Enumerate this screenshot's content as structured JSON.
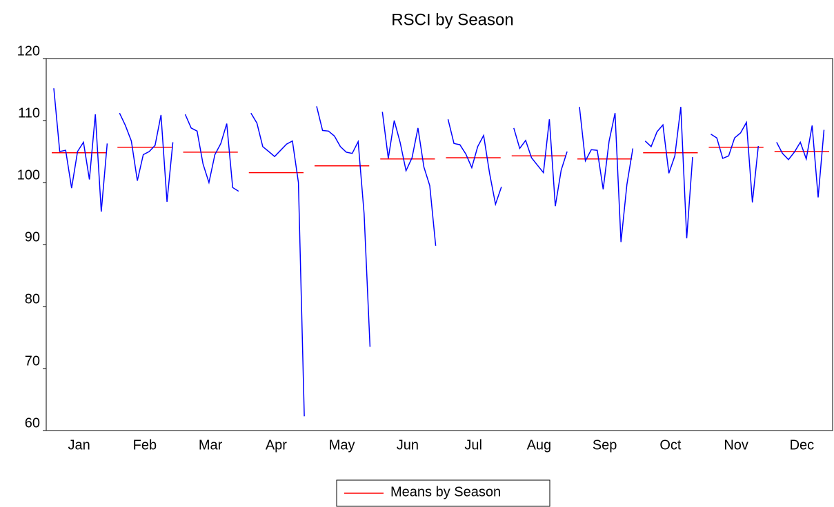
{
  "chart_data": {
    "type": "seasonal",
    "title": "RSCI by Season",
    "categories": [
      "Jan",
      "Feb",
      "Mar",
      "Apr",
      "May",
      "Jun",
      "Jul",
      "Aug",
      "Sep",
      "Oct",
      "Nov",
      "Dec"
    ],
    "subseries_color": "#0000ff",
    "subseries": [
      [
        115.2,
        105.0,
        105.2,
        99.1,
        105.0,
        106.5,
        100.5,
        111.0,
        95.3,
        106.3
      ],
      [
        111.2,
        109.2,
        106.7,
        100.3,
        104.5,
        105.0,
        106.0,
        110.9,
        96.9,
        106.5
      ],
      [
        111.0,
        108.8,
        108.3,
        103.0,
        100.0,
        104.5,
        106.3,
        109.5,
        99.2,
        98.6
      ],
      [
        111.2,
        109.6,
        105.8,
        105.0,
        104.2,
        105.2,
        106.2,
        106.7,
        100.0,
        62.3
      ],
      [
        112.3,
        108.4,
        108.3,
        107.5,
        105.8,
        104.9,
        104.7,
        106.6,
        95.0,
        73.5
      ],
      [
        111.4,
        103.9,
        110.0,
        106.5,
        101.9,
        104.0,
        108.8,
        102.5,
        99.5,
        89.8
      ],
      [
        110.2,
        106.3,
        106.1,
        104.6,
        102.4,
        105.8,
        107.6,
        101.5,
        96.5,
        99.3
      ],
      [
        108.8,
        105.5,
        106.8,
        104.0,
        102.8,
        101.6,
        110.2,
        96.2,
        102.0,
        105.0
      ],
      [
        112.2,
        103.5,
        105.3,
        105.2,
        98.9,
        106.7,
        111.2,
        90.4,
        99.7,
        105.5
      ],
      [
        106.7,
        105.8,
        108.2,
        109.3,
        101.5,
        104.3,
        112.2,
        91.0,
        104.1
      ],
      [
        107.8,
        107.2,
        103.9,
        104.3,
        107.2,
        108.0,
        109.7,
        96.8,
        105.9
      ],
      [
        106.5,
        104.7,
        103.7,
        104.9,
        106.5,
        103.8,
        109.2,
        97.6,
        108.5
      ]
    ],
    "means": {
      "name": "Means by Season",
      "color": "#ff0000",
      "values": [
        104.8,
        105.7,
        104.9,
        101.6,
        102.7,
        103.8,
        104.0,
        104.3,
        103.8,
        104.8,
        105.7,
        105.0
      ]
    },
    "ylim": [
      60,
      120
    ],
    "yticks": [
      60,
      70,
      80,
      90,
      100,
      110,
      120
    ],
    "legend": "bottom"
  }
}
